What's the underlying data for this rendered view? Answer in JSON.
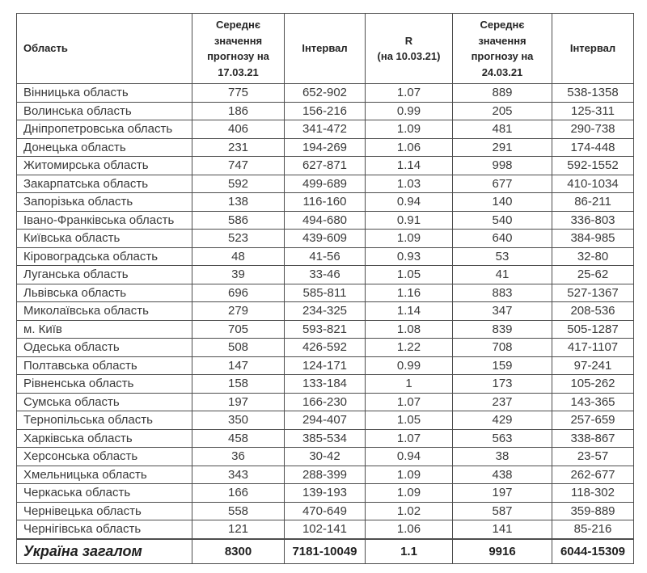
{
  "chart_data": {
    "type": "table",
    "title": "",
    "columns": [
      "Область",
      "Середнє значення прогнозу на 17.03.21",
      "Інтервал",
      "R (на 10.03.21)",
      "Середнє значення прогнозу на 24.03.21",
      "Інтервал"
    ],
    "header_display": [
      "Область",
      "Середнє\nзначення\nпрогнозу на\n17.03.21",
      "Інтервал",
      "R\n(на 10.03.21)",
      "Середнє\nзначення\nпрогнозу на\n24.03.21",
      "Інтервал"
    ],
    "rows": [
      [
        "Вінницька область",
        "775",
        "652-902",
        "1.07",
        "889",
        "538-1358"
      ],
      [
        "Волинська область",
        "186",
        "156-216",
        "0.99",
        "205",
        "125-311"
      ],
      [
        "Дніпропетровська область",
        "406",
        "341-472",
        "1.09",
        "481",
        "290-738"
      ],
      [
        "Донецька область",
        "231",
        "194-269",
        "1.06",
        "291",
        "174-448"
      ],
      [
        "Житомирська область",
        "747",
        "627-871",
        "1.14",
        "998",
        "592-1552"
      ],
      [
        "Закарпатська область",
        "592",
        "499-689",
        "1.03",
        "677",
        "410-1034"
      ],
      [
        "Запорізька область",
        "138",
        "116-160",
        "0.94",
        "140",
        "86-211"
      ],
      [
        "Івано-Франківська область",
        "586",
        "494-680",
        "0.91",
        "540",
        "336-803"
      ],
      [
        "Київська область",
        "523",
        "439-609",
        "1.09",
        "640",
        "384-985"
      ],
      [
        "Кіровоградська область",
        "48",
        "41-56",
        "0.93",
        "53",
        "32-80"
      ],
      [
        "Луганська область",
        "39",
        "33-46",
        "1.05",
        "41",
        "25-62"
      ],
      [
        "Львівська область",
        "696",
        "585-811",
        "1.16",
        "883",
        "527-1367"
      ],
      [
        "Миколаївська область",
        "279",
        "234-325",
        "1.14",
        "347",
        "208-536"
      ],
      [
        "м. Київ",
        "705",
        "593-821",
        "1.08",
        "839",
        "505-1287"
      ],
      [
        "Одеська область",
        "508",
        "426-592",
        "1.22",
        "708",
        "417-1107"
      ],
      [
        "Полтавська область",
        "147",
        "124-171",
        "0.99",
        "159",
        "97-241"
      ],
      [
        "Рівненська область",
        "158",
        "133-184",
        "1",
        "173",
        "105-262"
      ],
      [
        "Сумська область",
        "197",
        "166-230",
        "1.07",
        "237",
        "143-365"
      ],
      [
        "Тернопільська область",
        "350",
        "294-407",
        "1.05",
        "429",
        "257-659"
      ],
      [
        "Харківська область",
        "458",
        "385-534",
        "1.07",
        "563",
        "338-867"
      ],
      [
        "Херсонська область",
        "36",
        "30-42",
        "0.94",
        "38",
        "23-57"
      ],
      [
        "Хмельницька область",
        "343",
        "288-399",
        "1.09",
        "438",
        "262-677"
      ],
      [
        "Черкаська область",
        "166",
        "139-193",
        "1.09",
        "197",
        "118-302"
      ],
      [
        "Чернівецька область",
        "558",
        "470-649",
        "1.02",
        "587",
        "359-889"
      ],
      [
        "Чернігівська область",
        "121",
        "102-141",
        "1.06",
        "141",
        "85-216"
      ]
    ],
    "total_row": [
      "Україна загалом",
      "8300",
      "7181-10049",
      "1.1",
      "9916",
      "6044-15309"
    ]
  },
  "styles": {
    "border_color": "#4d4d4d",
    "text_color": "#262626",
    "background": "#ffffff"
  }
}
